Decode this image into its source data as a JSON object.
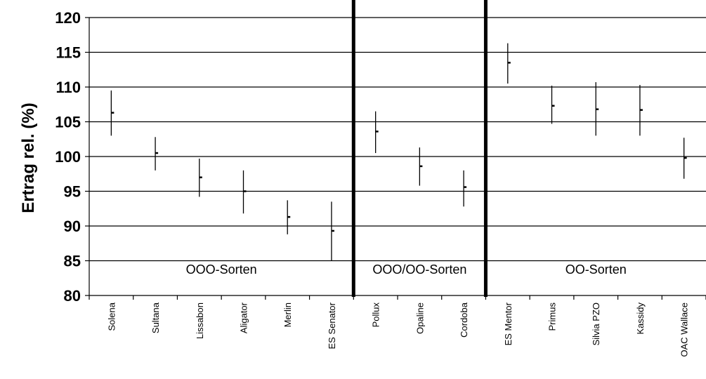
{
  "chart_data": {
    "type": "scatter",
    "title": "",
    "ylabel": "Ertrag rel. (%)",
    "xlabel": "",
    "ylim": [
      80,
      120
    ],
    "yticks": [
      80,
      85,
      90,
      95,
      100,
      105,
      110,
      115,
      120
    ],
    "grid": true,
    "categories": [
      "Solena",
      "Sultana",
      "Lissabon",
      "Aligator",
      "Merlin",
      "ES Senator",
      "Pollux",
      "Opaline",
      "Cordoba",
      "ES Mentor",
      "Primus",
      "Silvia PZO",
      "Kassidy",
      "OAC Wallace"
    ],
    "series": [
      {
        "values": [
          106.3,
          100.5,
          97.0,
          95.0,
          91.3,
          89.3,
          103.6,
          98.6,
          95.6,
          113.5,
          107.3,
          106.8,
          106.7,
          99.8
        ],
        "low": [
          103.0,
          98.0,
          94.2,
          91.8,
          88.8,
          85.0,
          100.5,
          95.8,
          92.8,
          110.5,
          104.7,
          103.0,
          103.0,
          96.8
        ],
        "high": [
          109.5,
          102.8,
          99.7,
          98.0,
          93.7,
          93.5,
          106.5,
          101.3,
          98.0,
          116.3,
          110.2,
          110.7,
          110.3,
          102.7
        ]
      }
    ],
    "groups": [
      {
        "label": "OOO-Sorten",
        "start": 0,
        "end": 5
      },
      {
        "label": "OOO/OO-Sorten",
        "start": 6,
        "end": 8
      },
      {
        "label": "OO-Sorten",
        "start": 9,
        "end": 13
      }
    ]
  }
}
